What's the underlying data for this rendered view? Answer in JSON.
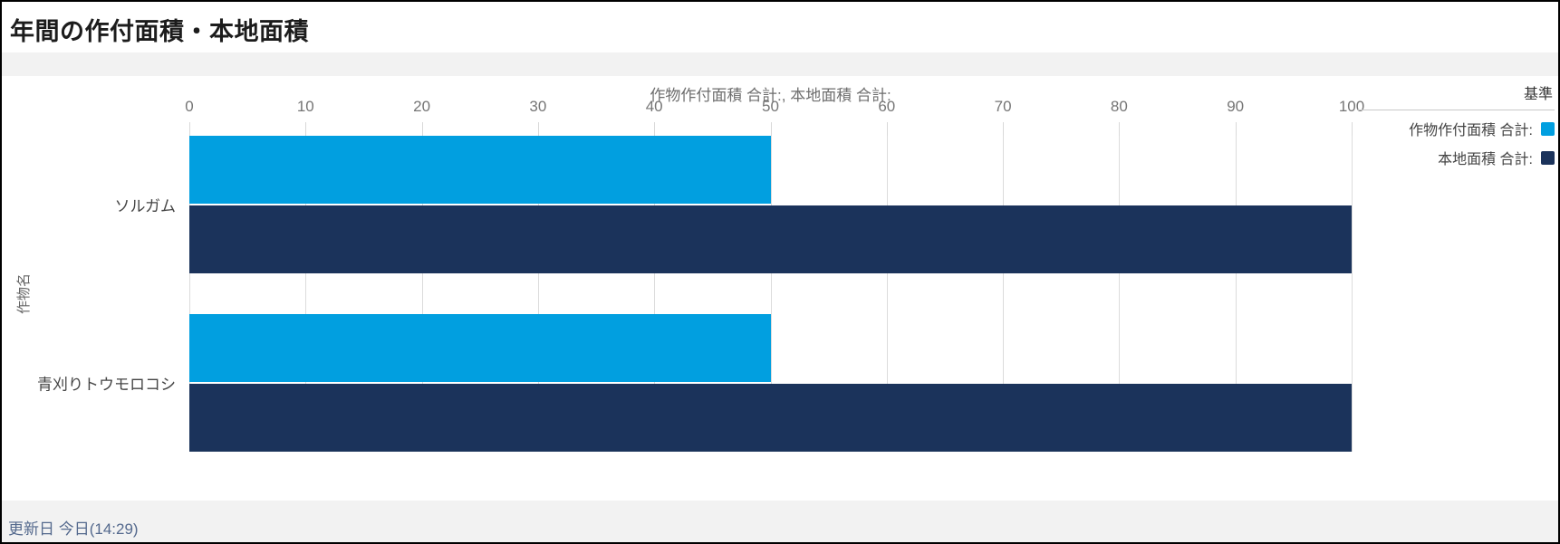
{
  "title": "年間の作付面積・本地面積",
  "legend": {
    "header": "基準",
    "items": [
      {
        "label": "作物作付面積 合計:",
        "color": "#019fe0"
      },
      {
        "label": "本地面積 合計:",
        "color": "#1b335b"
      }
    ]
  },
  "footer": {
    "updated": "更新日 今日(14:29)"
  },
  "colors": {
    "series_light_blue": "#019fe0",
    "series_navy": "#1b335b",
    "gridline": "#dcdcdc",
    "footer_text": "#54698d"
  },
  "chart_data": {
    "type": "bar",
    "orientation": "horizontal",
    "title": "作物作付面積 合計:, 本地面積 合計:",
    "ylabel": "作物名",
    "categories": [
      "ソルガム",
      "青刈りトウモロコシ"
    ],
    "series": [
      {
        "name": "作物作付面積 合計:",
        "color": "#019fe0",
        "values": [
          50,
          50
        ]
      },
      {
        "name": "本地面積 合計:",
        "color": "#1b335b",
        "values": [
          100,
          100
        ]
      }
    ],
    "xlim": [
      0,
      100
    ],
    "xticks": [
      0,
      10,
      20,
      30,
      40,
      50,
      60,
      70,
      80,
      90,
      100
    ],
    "grid": true,
    "legend_position": "right",
    "legend_title": "基準"
  }
}
